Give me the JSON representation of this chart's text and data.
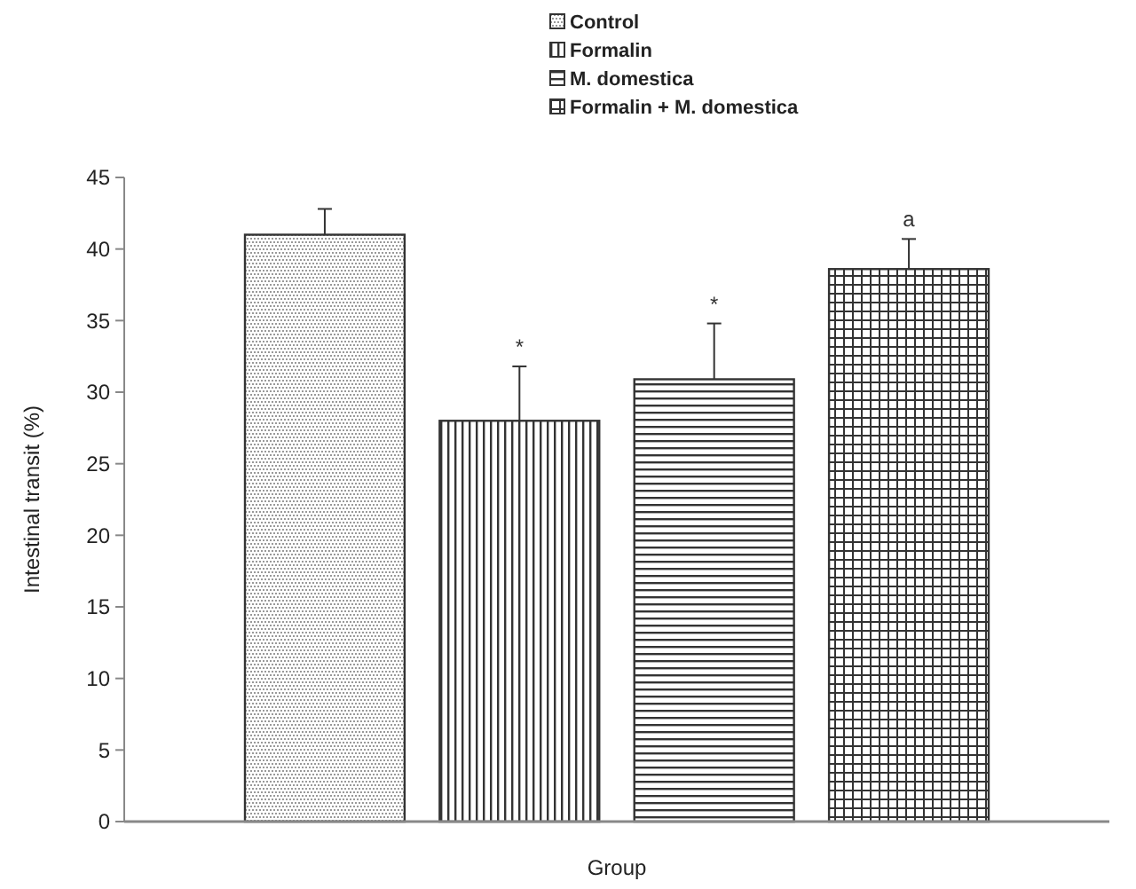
{
  "chart_data": {
    "type": "bar",
    "xlabel": "Group",
    "ylabel": "Intestinal transit (%)",
    "categories": [
      null,
      null,
      null,
      null
    ],
    "series": [
      {
        "name": "Control",
        "color": "#333333",
        "values": [
          41,
          null,
          null,
          null
        ],
        "errors": [
          1.8,
          null,
          null,
          null
        ],
        "value_labels": [
          null,
          null,
          null,
          null
        ]
      },
      {
        "name": "Formalin",
        "color": "#333333",
        "values": [
          null,
          28,
          null,
          null
        ],
        "errors": [
          null,
          3.8,
          null,
          null
        ],
        "value_labels": [
          null,
          "*",
          null,
          null
        ]
      },
      {
        "name": "M. domestica",
        "color": "#333333",
        "values": [
          null,
          null,
          30.9,
          null
        ],
        "errors": [
          null,
          null,
          3.9,
          null
        ],
        "value_labels": [
          null,
          null,
          "*",
          null
        ]
      },
      {
        "name": "Formalin + M. domestica",
        "color": "#333333",
        "values": [
          null,
          null,
          null,
          38.6
        ],
        "errors": [
          null,
          null,
          null,
          2.1
        ],
        "value_labels": [
          null,
          null,
          null,
          "a"
        ]
      }
    ],
    "ylim": [
      0,
      45
    ],
    "yticks": [
      0,
      5,
      10,
      15,
      20,
      25,
      30,
      35,
      40,
      45
    ],
    "grid": false,
    "legend": "top",
    "tick_labels": "y"
  }
}
